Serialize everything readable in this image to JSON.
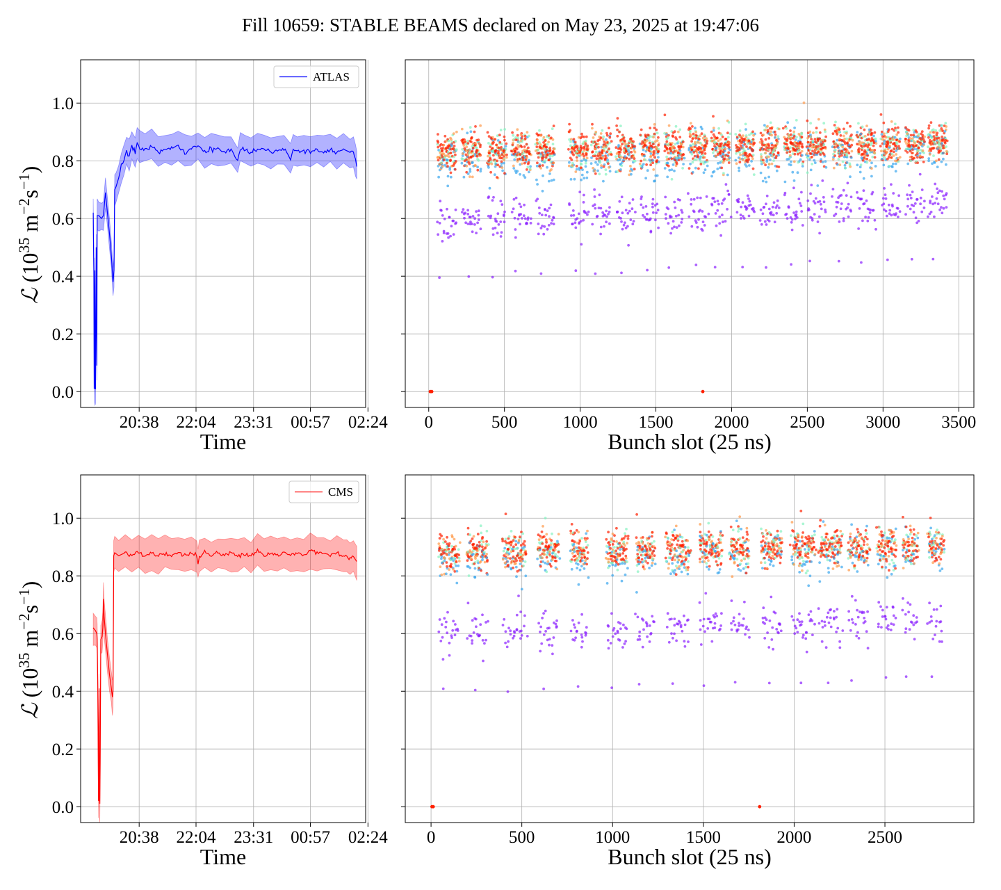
{
  "figure": {
    "title": "Fill 10659: STABLE BEAMS declared on May 23, 2025 at 19:47:06"
  },
  "chart_data": [
    {
      "id": "atlas_time",
      "type": "line",
      "title": "",
      "xlabel": "Time",
      "ylabel": "ℒ (10³⁵ m⁻²s⁻¹)",
      "ylabel_parts": {
        "symbol": "ℒ",
        "open": " (10",
        "exp1": "35",
        "unit1": " m",
        "exp2": "−2",
        "unit2": "s",
        "exp3": "−1",
        "close": ")"
      },
      "ylim": [
        -0.055,
        1.15
      ],
      "yticks": [
        0.0,
        0.2,
        0.4,
        0.6,
        0.8,
        1.0
      ],
      "ytick_labels": [
        "0.0",
        "0.2",
        "0.4",
        "0.6",
        "0.8",
        "1.0"
      ],
      "xticks_min": [
        51,
        137,
        224,
        310,
        397
      ],
      "xtick_labels": [
        "20:38",
        "22:04",
        "23:31",
        "00:57",
        "02:24"
      ],
      "xlim_min": [
        -37.5,
        393.5
      ],
      "grid": true,
      "legend": {
        "position": "top-right",
        "entries": [
          "ATLAS"
        ]
      },
      "series": [
        {
          "name": "ATLAS",
          "color": "#0000ff",
          "band_color": "#0000ff",
          "band_alpha": 0.3,
          "band_halfwidth": 0.05,
          "points": [
            [
              -18.5,
              0.62
            ],
            [
              -18,
              0.52
            ],
            [
              -17.5,
              0.42
            ],
            [
              -17,
              0.01
            ],
            [
              -16,
              0.42
            ],
            [
              -15.5,
              0.01
            ],
            [
              -15,
              0.01
            ],
            [
              -14,
              0.5
            ],
            [
              -13,
              0.09
            ],
            [
              -12.5,
              0.61
            ],
            [
              -10,
              0.61
            ],
            [
              -6,
              0.6
            ],
            [
              -3,
              0.61
            ],
            [
              0,
              0.69
            ],
            [
              3,
              0.62
            ],
            [
              6,
              0.55
            ],
            [
              9,
              0.47
            ],
            [
              11.5,
              0.38
            ],
            [
              13,
              0.42
            ],
            [
              14,
              0.7
            ],
            [
              16,
              0.71
            ],
            [
              20,
              0.74
            ],
            [
              24,
              0.78
            ],
            [
              28,
              0.8
            ],
            [
              32,
              0.83
            ],
            [
              36,
              0.82
            ],
            [
              40,
              0.85
            ],
            [
              45,
              0.83
            ],
            [
              48,
              0.86
            ],
            [
              52,
              0.84
            ],
            [
              60,
              0.84
            ],
            [
              70,
              0.85
            ],
            [
              80,
              0.83
            ],
            [
              90,
              0.84
            ],
            [
              100,
              0.84
            ],
            [
              110,
              0.85
            ],
            [
              120,
              0.83
            ],
            [
              130,
              0.84
            ],
            [
              140,
              0.85
            ],
            [
              150,
              0.83
            ],
            [
              160,
              0.84
            ],
            [
              170,
              0.84
            ],
            [
              180,
              0.83
            ],
            [
              190,
              0.84
            ],
            [
              200,
              0.8
            ],
            [
              204,
              0.84
            ],
            [
              210,
              0.84
            ],
            [
              220,
              0.83
            ],
            [
              230,
              0.84
            ],
            [
              240,
              0.84
            ],
            [
              250,
              0.83
            ],
            [
              260,
              0.84
            ],
            [
              270,
              0.84
            ],
            [
              280,
              0.81
            ],
            [
              284,
              0.84
            ],
            [
              290,
              0.83
            ],
            [
              300,
              0.84
            ],
            [
              310,
              0.83
            ],
            [
              320,
              0.84
            ],
            [
              330,
              0.83
            ],
            [
              340,
              0.84
            ],
            [
              350,
              0.83
            ],
            [
              360,
              0.84
            ],
            [
              370,
              0.83
            ],
            [
              375,
              0.83
            ],
            [
              378,
              0.8
            ],
            [
              380,
              0.78
            ]
          ]
        }
      ]
    },
    {
      "id": "atlas_bunch",
      "type": "scatter",
      "title": "",
      "xlabel": "Bunch slot (25 ns)",
      "ylabel": "",
      "xlim": [
        -155,
        3600
      ],
      "ylim": [
        -0.055,
        1.15
      ],
      "xticks": [
        0,
        500,
        1000,
        1500,
        2000,
        2500,
        3000,
        3500
      ],
      "xtick_labels": [
        "0",
        "500",
        "1000",
        "1500",
        "2000",
        "2500",
        "3000",
        "3500"
      ],
      "yticks": [
        0.0,
        0.2,
        0.4,
        0.6,
        0.8,
        1.0
      ],
      "grid": true,
      "colormap": "rainbow",
      "band_centers": [
        0.59,
        0.79,
        0.83
      ],
      "trains": [
        {
          "start": 60,
          "end": 180
        },
        {
          "start": 220,
          "end": 340
        },
        {
          "start": 390,
          "end": 510
        },
        {
          "start": 550,
          "end": 670
        },
        {
          "start": 710,
          "end": 830
        },
        {
          "start": 930,
          "end": 1050
        },
        {
          "start": 1080,
          "end": 1200
        },
        {
          "start": 1240,
          "end": 1360
        },
        {
          "start": 1400,
          "end": 1520
        },
        {
          "start": 1560,
          "end": 1680
        },
        {
          "start": 1720,
          "end": 1840
        },
        {
          "start": 1870,
          "end": 1990
        },
        {
          "start": 2030,
          "end": 2150
        },
        {
          "start": 2190,
          "end": 2310
        },
        {
          "start": 2350,
          "end": 2470
        },
        {
          "start": 2500,
          "end": 2620
        },
        {
          "start": 2670,
          "end": 2790
        },
        {
          "start": 2830,
          "end": 2950
        },
        {
          "start": 2990,
          "end": 3110
        },
        {
          "start": 3150,
          "end": 3270
        },
        {
          "start": 3300,
          "end": 3420
        }
      ],
      "zero_points": [
        [
          10,
          0.0
        ],
        [
          20,
          0.0
        ],
        [
          1810,
          0.0
        ]
      ]
    },
    {
      "id": "cms_time",
      "type": "line",
      "title": "",
      "xlabel": "Time",
      "ylabel": "ℒ (10³⁵ m⁻²s⁻¹)",
      "ylabel_parts": {
        "symbol": "ℒ",
        "open": " (10",
        "exp1": "35",
        "unit1": " m",
        "exp2": "−2",
        "unit2": "s",
        "exp3": "−1",
        "close": ")"
      },
      "ylim": [
        -0.055,
        1.15
      ],
      "yticks": [
        0.0,
        0.2,
        0.4,
        0.6,
        0.8,
        1.0
      ],
      "ytick_labels": [
        "0.0",
        "0.2",
        "0.4",
        "0.6",
        "0.8",
        "1.0"
      ],
      "xticks_min": [
        51,
        137,
        224,
        310,
        397
      ],
      "xtick_labels": [
        "20:38",
        "22:04",
        "23:31",
        "00:57",
        "02:24"
      ],
      "xlim_min": [
        -37.5,
        393.5
      ],
      "grid": true,
      "legend": {
        "position": "top-right",
        "entries": [
          "CMS"
        ]
      },
      "series": [
        {
          "name": "CMS",
          "color": "#ff0000",
          "band_color": "#ff0000",
          "band_alpha": 0.3,
          "band_halfwidth": 0.055,
          "points": [
            [
              -18.5,
              0.62
            ],
            [
              -15,
              0.61
            ],
            [
              -13,
              0.6
            ],
            [
              -12.5,
              0.58
            ],
            [
              -11.5,
              0.41
            ],
            [
              -10.5,
              0.02
            ],
            [
              -9.5,
              0.41
            ],
            [
              -9,
              0.02
            ],
            [
              -8.5,
              0.01
            ],
            [
              -8,
              0.15
            ],
            [
              -7,
              0.58
            ],
            [
              -5,
              0.59
            ],
            [
              -4,
              0.62
            ],
            [
              -3,
              0.72
            ],
            [
              -2,
              0.66
            ],
            [
              0,
              0.6
            ],
            [
              3,
              0.53
            ],
            [
              6,
              0.46
            ],
            [
              9,
              0.41
            ],
            [
              10.5,
              0.38
            ],
            [
              11.5,
              0.4
            ],
            [
              12.5,
              0.87
            ],
            [
              14,
              0.88
            ],
            [
              20,
              0.87
            ],
            [
              30,
              0.88
            ],
            [
              40,
              0.87
            ],
            [
              50,
              0.88
            ],
            [
              60,
              0.87
            ],
            [
              70,
              0.88
            ],
            [
              80,
              0.87
            ],
            [
              90,
              0.88
            ],
            [
              100,
              0.87
            ],
            [
              110,
              0.88
            ],
            [
              120,
              0.87
            ],
            [
              130,
              0.88
            ],
            [
              138,
              0.87
            ],
            [
              140,
              0.84
            ],
            [
              142,
              0.87
            ],
            [
              150,
              0.88
            ],
            [
              160,
              0.87
            ],
            [
              170,
              0.88
            ],
            [
              180,
              0.87
            ],
            [
              190,
              0.88
            ],
            [
              200,
              0.87
            ],
            [
              210,
              0.88
            ],
            [
              220,
              0.87
            ],
            [
              230,
              0.89
            ],
            [
              240,
              0.87
            ],
            [
              250,
              0.88
            ],
            [
              260,
              0.87
            ],
            [
              270,
              0.88
            ],
            [
              280,
              0.87
            ],
            [
              290,
              0.88
            ],
            [
              300,
              0.87
            ],
            [
              310,
              0.89
            ],
            [
              320,
              0.88
            ],
            [
              330,
              0.88
            ],
            [
              340,
              0.87
            ],
            [
              350,
              0.88
            ],
            [
              360,
              0.87
            ],
            [
              365,
              0.87
            ],
            [
              370,
              0.86
            ],
            [
              375,
              0.87
            ],
            [
              380,
              0.85
            ]
          ]
        }
      ]
    },
    {
      "id": "cms_bunch",
      "type": "scatter",
      "title": "",
      "xlabel": "Bunch slot (25 ns)",
      "ylabel": "",
      "xlim": [
        -142,
        2990
      ],
      "ylim": [
        -0.055,
        1.15
      ],
      "xticks": [
        0,
        500,
        1000,
        1500,
        2000,
        2500
      ],
      "xtick_labels": [
        "0",
        "500",
        "1000",
        "1500",
        "2000",
        "2500"
      ],
      "yticks": [
        0.0,
        0.2,
        0.4,
        0.6,
        0.8,
        1.0
      ],
      "grid": true,
      "colormap": "rainbow",
      "band_centers": [
        0.6,
        0.85,
        0.88
      ],
      "trains": [
        {
          "start": 45,
          "end": 150
        },
        {
          "start": 200,
          "end": 310
        },
        {
          "start": 400,
          "end": 520
        },
        {
          "start": 590,
          "end": 700
        },
        {
          "start": 770,
          "end": 860
        },
        {
          "start": 970,
          "end": 1080
        },
        {
          "start": 1130,
          "end": 1230
        },
        {
          "start": 1300,
          "end": 1420
        },
        {
          "start": 1480,
          "end": 1600
        },
        {
          "start": 1650,
          "end": 1750
        },
        {
          "start": 1820,
          "end": 1930
        },
        {
          "start": 1990,
          "end": 2110
        },
        {
          "start": 2140,
          "end": 2260
        },
        {
          "start": 2300,
          "end": 2410
        },
        {
          "start": 2460,
          "end": 2560
        },
        {
          "start": 2600,
          "end": 2680
        },
        {
          "start": 2740,
          "end": 2820
        }
      ],
      "zero_points": [
        [
          5,
          0.0
        ],
        [
          12,
          0.0
        ],
        [
          1810,
          0.0
        ]
      ]
    }
  ]
}
